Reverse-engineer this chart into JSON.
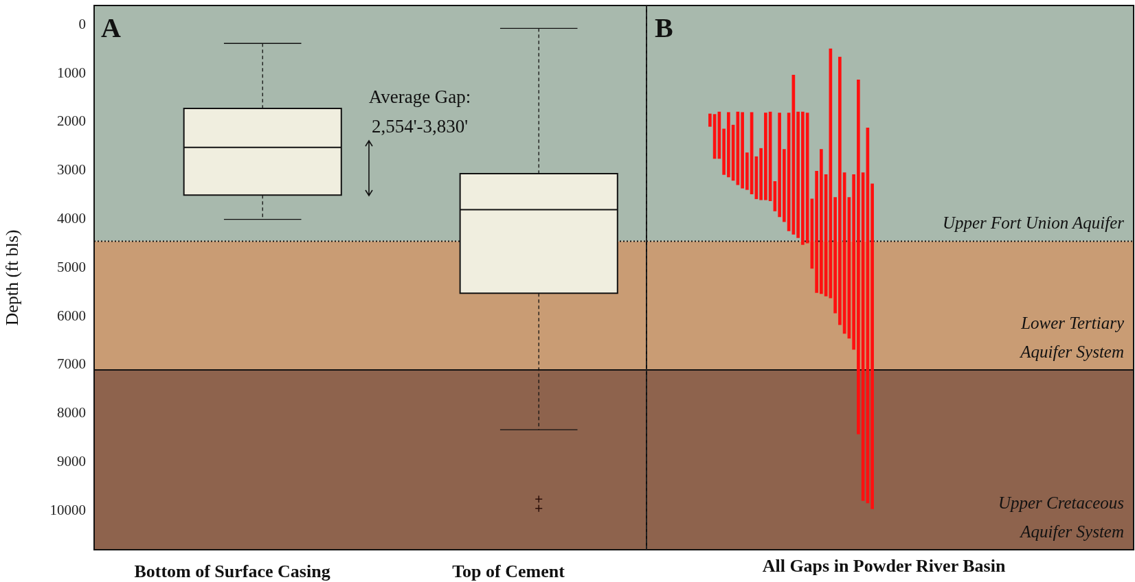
{
  "chart_data": [
    {
      "type": "box",
      "categories": [
        "Bottom of Surface Casing",
        "Top of Cement"
      ],
      "ylabel": "Depth (ft bls)",
      "boxes": [
        {
          "low": 380,
          "q1": 1720,
          "median": 2520,
          "q3": 3500,
          "high": 4000
        },
        {
          "low": 70,
          "q1": 3060,
          "median": 3800,
          "q3": 5520,
          "high": 8330,
          "outliers": [
            9760,
            9950
          ]
        }
      ],
      "color": "#f0eedf",
      "ylim": [
        10800,
        -400
      ],
      "yticks": [
        0,
        1000,
        2000,
        3000,
        4000,
        5000,
        6000,
        7000,
        8000,
        9000,
        10000
      ],
      "bands": [
        {
          "axis": "y",
          "from": -400,
          "to": 4450,
          "color": "#a8b9ad"
        },
        {
          "axis": "y",
          "from": 4450,
          "to": 7100,
          "color": "#c99c74"
        },
        {
          "axis": "y",
          "from": 7100,
          "to": 10800,
          "color": "#8e634d"
        }
      ],
      "ref_lines": [
        {
          "axis": "y",
          "value": 4450,
          "line_style": "dotted"
        },
        {
          "axis": "y",
          "value": 7100,
          "line_style": "solid"
        }
      ],
      "annotations": [
        "A",
        "Average Gap:",
        "2,554'-3,830'"
      ],
      "grid": false,
      "legend": false
    },
    {
      "type": "bar",
      "xlabel": "All Gaps in Powder River Basin",
      "categories": [
        null,
        null,
        null,
        null,
        null,
        null,
        null,
        null,
        null,
        null,
        null,
        null,
        null,
        null,
        null,
        null,
        null,
        null,
        null,
        null,
        null,
        null,
        null,
        null,
        null,
        null,
        null,
        null,
        null,
        null,
        null,
        null,
        null,
        null,
        null,
        null
      ],
      "base": [
        1830,
        1840,
        1790,
        2140,
        1800,
        2060,
        1790,
        1800,
        2630,
        1800,
        2710,
        2540,
        1810,
        1790,
        3220,
        1810,
        2560,
        1810,
        1030,
        1790,
        1790,
        1810,
        3580,
        3010,
        2560,
        3080,
        490,
        3550,
        660,
        3040,
        3550,
        3080,
        1130,
        3040,
        2120,
        3270
      ],
      "values": [
        260,
        910,
        960,
        940,
        1330,
        1140,
        1500,
        1560,
        760,
        1680,
        870,
        1060,
        1790,
        1830,
        610,
        2140,
        1490,
        2430,
        3280,
        2590,
        2730,
        2680,
        1430,
        2500,
        2970,
        2500,
        5130,
        2380,
        5510,
        3310,
        2900,
        3600,
        7290,
        6750,
        7720,
        6690
      ],
      "color": "#ff1010",
      "ylim": [
        10800,
        -400
      ],
      "yticks": [
        0,
        1000,
        2000,
        3000,
        4000,
        5000,
        6000,
        7000,
        8000,
        9000,
        10000
      ],
      "tick_labels": false,
      "bands": [
        {
          "axis": "y",
          "from": -400,
          "to": 4450,
          "color": "#a8b9ad",
          "label": "Upper Fort Union Aquifer"
        },
        {
          "axis": "y",
          "from": 4450,
          "to": 7100,
          "color": "#c99c74",
          "label": "Lower Tertiary\nAquifer System"
        },
        {
          "axis": "y",
          "from": 7100,
          "to": 10800,
          "color": "#8e634d",
          "label": "Upper Cretaceous\nAquifer System"
        }
      ],
      "ref_lines": [
        {
          "axis": "y",
          "value": 4450,
          "line_style": "dotted"
        },
        {
          "axis": "y",
          "value": 7100,
          "line_style": "solid"
        }
      ],
      "annotations": [
        "B"
      ],
      "grid": false,
      "legend": false
    }
  ]
}
